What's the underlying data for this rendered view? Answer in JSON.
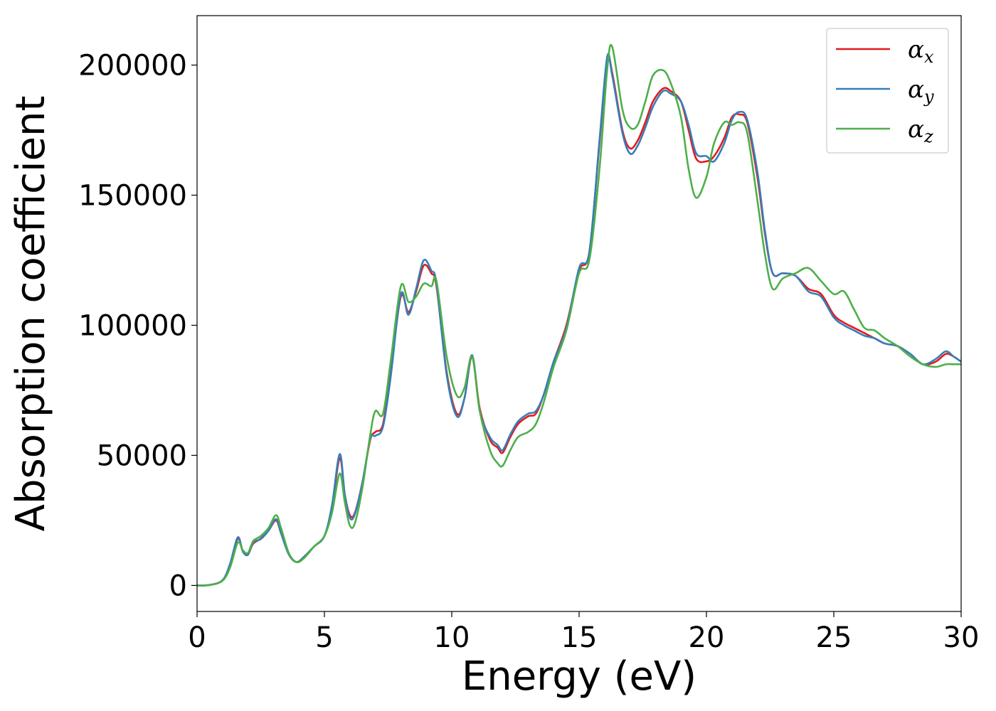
{
  "chart_data": {
    "type": "line",
    "xlabel": "Energy (eV)",
    "ylabel": "Absorption coefficient",
    "xlim": [
      0,
      30
    ],
    "ylim": [
      -10000,
      219000
    ],
    "xticks": [
      0,
      5,
      10,
      15,
      20,
      25,
      30
    ],
    "yticks": [
      0,
      50000,
      100000,
      150000,
      200000
    ],
    "grid": false,
    "legend_position": "top-right",
    "x": [
      0,
      0.5,
      1,
      1.3,
      1.6,
      1.8,
      2.0,
      2.2,
      2.5,
      2.8,
      3.1,
      3.3,
      3.6,
      3.9,
      4.2,
      4.6,
      5.0,
      5.3,
      5.6,
      5.8,
      6.0,
      6.2,
      6.5,
      6.8,
      7.0,
      7.3,
      7.6,
      8.0,
      8.3,
      8.6,
      8.9,
      9.2,
      9.4,
      9.8,
      10.2,
      10.5,
      10.8,
      11.1,
      11.5,
      11.8,
      12.0,
      12.3,
      12.6,
      13.0,
      13.3,
      13.6,
      14.0,
      14.5,
      15.0,
      15.4,
      15.8,
      16.1,
      16.3,
      16.7,
      17.0,
      17.3,
      17.6,
      17.9,
      18.3,
      18.6,
      19.0,
      19.3,
      19.6,
      20.0,
      20.3,
      20.7,
      21.0,
      21.3,
      21.6,
      22.0,
      22.3,
      22.6,
      23.0,
      23.5,
      24.0,
      24.5,
      25.0,
      25.4,
      25.8,
      26.2,
      26.6,
      27.0,
      27.5,
      28.0,
      28.5,
      29.0,
      29.4,
      29.7,
      30.0
    ],
    "series": [
      {
        "name": "αx",
        "name_base": "α",
        "name_sub": "x",
        "color": "#e41a1c",
        "values": [
          0,
          200,
          2000,
          8000,
          18000,
          13000,
          12000,
          16000,
          18000,
          21000,
          25000,
          20000,
          12000,
          9000,
          11000,
          15000,
          19000,
          30000,
          49000,
          35000,
          27000,
          28000,
          40000,
          56000,
          59000,
          62000,
          82000,
          111000,
          105000,
          113000,
          123000,
          120000,
          115000,
          82000,
          66000,
          72000,
          88000,
          68000,
          56000,
          53000,
          51000,
          57000,
          62000,
          65000,
          66000,
          73000,
          86000,
          100000,
          121000,
          128000,
          170000,
          202000,
          197000,
          175000,
          168000,
          171000,
          178000,
          186000,
          191000,
          190000,
          186000,
          175000,
          164000,
          163000,
          165000,
          172000,
          180000,
          181000,
          178000,
          157000,
          135000,
          120000,
          120000,
          119000,
          114000,
          112000,
          104000,
          101000,
          99000,
          97000,
          95000,
          93000,
          92000,
          89000,
          85000,
          86000,
          89000,
          88000,
          86000
        ]
      },
      {
        "name": "αy",
        "name_base": "α",
        "name_sub": "y",
        "color": "#377eb8",
        "values": [
          0,
          200,
          2000,
          8500,
          18500,
          13000,
          11800,
          16500,
          17800,
          21000,
          25500,
          20000,
          12000,
          9000,
          11000,
          15000,
          19000,
          31000,
          50500,
          35000,
          26000,
          27500,
          40000,
          56500,
          57500,
          61000,
          80000,
          112000,
          104000,
          114000,
          125000,
          121000,
          116000,
          81000,
          65000,
          72000,
          88500,
          67000,
          57000,
          54000,
          52000,
          58000,
          63000,
          66000,
          67000,
          73000,
          86000,
          99000,
          122000,
          128000,
          171000,
          203000,
          196000,
          174000,
          166000,
          169000,
          176000,
          184000,
          190000,
          189000,
          186000,
          177000,
          166000,
          165000,
          163000,
          170000,
          179000,
          182000,
          179000,
          159000,
          136000,
          120000,
          120000,
          119000,
          113000,
          111000,
          103000,
          100000,
          98000,
          96000,
          95000,
          93000,
          92000,
          89000,
          85000,
          87000,
          90000,
          88000,
          86000
        ]
      },
      {
        "name": "αz",
        "name_base": "α",
        "name_sub": "z",
        "color": "#4daf4a",
        "values": [
          0,
          200,
          1800,
          7000,
          16500,
          13500,
          12500,
          17000,
          19000,
          22000,
          27000,
          22000,
          12500,
          9000,
          10500,
          15000,
          19000,
          28000,
          43000,
          32000,
          23000,
          24000,
          38000,
          58000,
          67000,
          66000,
          86000,
          115000,
          109000,
          111000,
          116000,
          115000,
          117000,
          88000,
          73000,
          76000,
          88000,
          67000,
          52000,
          47000,
          46000,
          52000,
          57000,
          59000,
          62000,
          70000,
          84000,
          98000,
          120000,
          125000,
          160000,
          198000,
          207000,
          183000,
          176000,
          177000,
          186000,
          196000,
          198000,
          193000,
          180000,
          160000,
          149000,
          157000,
          170000,
          178000,
          177000,
          178000,
          174000,
          148000,
          127000,
          114000,
          118000,
          120000,
          122000,
          117000,
          112000,
          113000,
          106000,
          99000,
          98000,
          95000,
          92000,
          88000,
          85000,
          84000,
          85000,
          85000,
          85000
        ]
      }
    ]
  }
}
